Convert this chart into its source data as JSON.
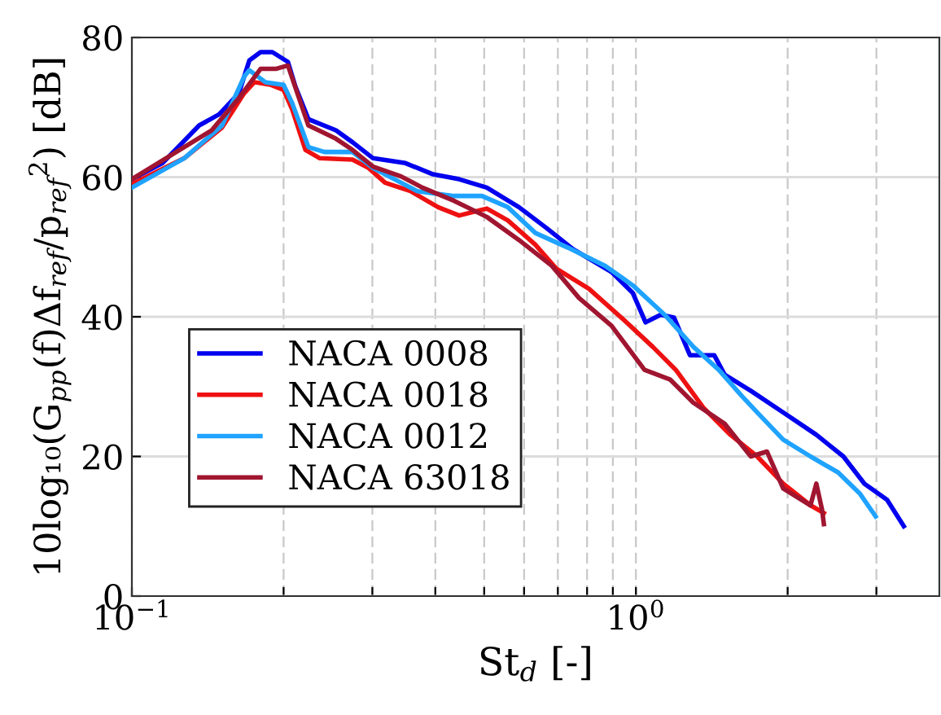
{
  "chart_data": {
    "type": "line",
    "xlabel": "St$_{d}$ [-]",
    "ylabel": "10log₁₀(G$_{pp}$(f)Δf$_{ref}$/p$_{ref}$$^{2}$) [dB]",
    "log": "x",
    "xlim": [
      0.1,
      4
    ],
    "ylim": [
      0,
      80
    ],
    "xticks": [
      {
        "value": 0.1,
        "label": "10$^{−1}$"
      },
      {
        "value": 0.2,
        "label": null
      },
      {
        "value": 0.3,
        "label": null
      },
      {
        "value": 0.4,
        "label": null
      },
      {
        "value": 0.5,
        "label": null
      },
      {
        "value": 0.6,
        "label": null
      },
      {
        "value": 0.7,
        "label": null
      },
      {
        "value": 0.8,
        "label": null
      },
      {
        "value": 0.9,
        "label": null
      },
      {
        "value": 1,
        "label": "10$^{0}$"
      },
      {
        "value": 2,
        "label": null
      },
      {
        "value": 3,
        "label": null
      }
    ],
    "yticks": [
      0,
      20,
      40,
      60,
      80
    ],
    "grid": true,
    "legend": "bottom left",
    "line_style": "solid",
    "marker": "none",
    "series": [
      {
        "name": "NACA 0008",
        "color": "#0000ee",
        "x": [
          0.1,
          0.115,
          0.136,
          0.149,
          0.163,
          0.171,
          0.18,
          0.19,
          0.204,
          0.211,
          0.224,
          0.254,
          0.274,
          0.301,
          0.349,
          0.396,
          0.446,
          0.506,
          0.586,
          0.665,
          0.75,
          0.895,
          0.986,
          1.045,
          1.12,
          1.19,
          1.28,
          1.43,
          1.5,
          1.69,
          1.96,
          2.28,
          2.58,
          2.84,
          3.15,
          3.4
        ],
        "values": [
          59.7,
          62,
          67.4,
          69,
          72,
          76.7,
          77.9,
          77.9,
          76.5,
          73,
          68.3,
          66.7,
          65,
          62.7,
          62,
          60.4,
          59.7,
          58.5,
          55.7,
          52.7,
          49.7,
          46.4,
          43.4,
          39.2,
          40.3,
          39.9,
          34.5,
          34.5,
          31.7,
          29.4,
          26.3,
          23.1,
          20,
          16.1,
          13.8,
          10
        ]
      },
      {
        "name": "NACA 0018",
        "color": "#ee1111",
        "x": [
          0.1,
          0.127,
          0.151,
          0.167,
          0.175,
          0.189,
          0.2,
          0.208,
          0.221,
          0.236,
          0.274,
          0.295,
          0.318,
          0.357,
          0.405,
          0.446,
          0.506,
          0.557,
          0.632,
          0.695,
          0.807,
          0.935,
          1.08,
          1.2,
          1.36,
          1.54,
          1.74,
          1.96,
          2.22,
          2.36
        ],
        "values": [
          59,
          62.7,
          67.1,
          72,
          73.6,
          73.2,
          72.5,
          69.7,
          63.9,
          62.7,
          62.5,
          61.3,
          59.2,
          58,
          55.7,
          54.5,
          55.5,
          53.8,
          50.3,
          46.9,
          44,
          39.9,
          35.7,
          32.4,
          27,
          23.1,
          20,
          16.1,
          13,
          11.9
        ]
      },
      {
        "name": "NACA 0012",
        "color": "#1fa3ff",
        "x": [
          0.1,
          0.127,
          0.151,
          0.167,
          0.171,
          0.184,
          0.2,
          0.208,
          0.224,
          0.241,
          0.274,
          0.301,
          0.368,
          0.436,
          0.495,
          0.557,
          0.632,
          0.733,
          0.869,
          0.986,
          1.14,
          1.3,
          1.46,
          1.62,
          1.74,
          1.96,
          2.22,
          2.52,
          2.78,
          2.99
        ],
        "values": [
          58.5,
          62.7,
          67.4,
          74.4,
          75.3,
          73.6,
          73.2,
          70.6,
          64.3,
          63.6,
          63.6,
          61.3,
          58,
          57.3,
          57.3,
          55.7,
          52,
          49.9,
          47.3,
          44.5,
          40.3,
          35.7,
          32.4,
          28.7,
          26.3,
          22.4,
          20,
          17.7,
          14.7,
          11.4
        ]
      },
      {
        "name": "NACA 63018",
        "color": "#a01530",
        "x": [
          0.1,
          0.144,
          0.163,
          0.18,
          0.193,
          0.204,
          0.213,
          0.224,
          0.254,
          0.274,
          0.301,
          0.342,
          0.377,
          0.436,
          0.506,
          0.586,
          0.681,
          0.771,
          0.895,
          1.04,
          1.17,
          1.3,
          1.5,
          1.69,
          1.82,
          1.96,
          2.22,
          2.28,
          2.34,
          2.36
        ],
        "values": [
          59.7,
          66.7,
          71.3,
          75.5,
          75.5,
          76,
          72,
          67.4,
          65.5,
          63.9,
          61.5,
          60.1,
          58.5,
          56.6,
          54.3,
          51,
          47.3,
          42.7,
          38.7,
          32.4,
          31,
          27.7,
          24.7,
          20,
          20.7,
          15.4,
          13,
          16.1,
          12.4,
          10.3
        ]
      }
    ]
  }
}
